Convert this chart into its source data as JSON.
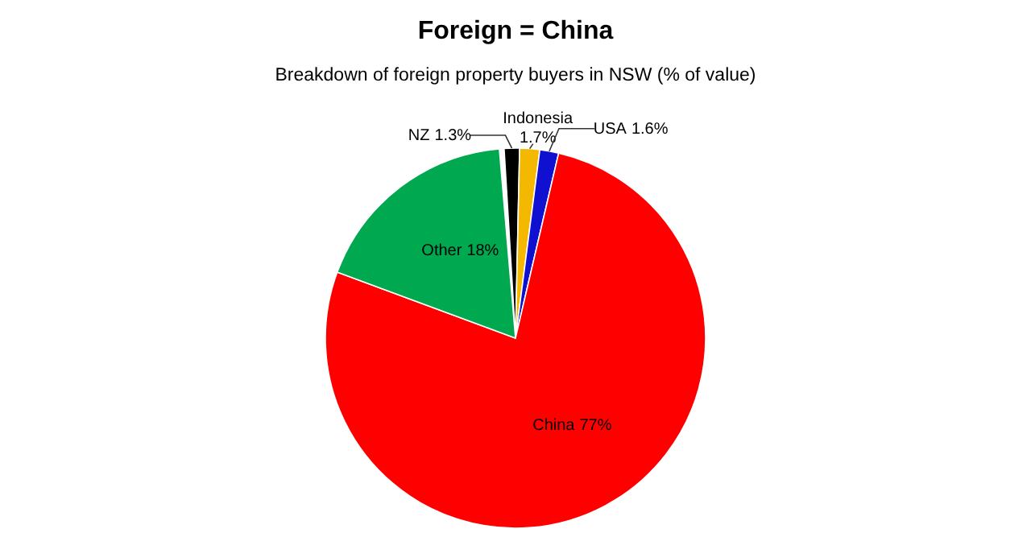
{
  "chart_data": {
    "type": "pie",
    "title": "Foreign = China",
    "subtitle": "Breakdown of foreign property buyers in NSW (% of value)",
    "categories": [
      "NZ",
      "Indonesia",
      "USA",
      "China",
      "Other"
    ],
    "values": [
      1.3,
      1.7,
      1.6,
      77,
      18
    ],
    "colors": [
      "#000000",
      "#f5b800",
      "#1010d0",
      "#ff0000",
      "#00a84f"
    ],
    "value_labels": [
      "1.3%",
      "1.7%",
      "1.6%",
      "77%",
      "18%"
    ]
  }
}
